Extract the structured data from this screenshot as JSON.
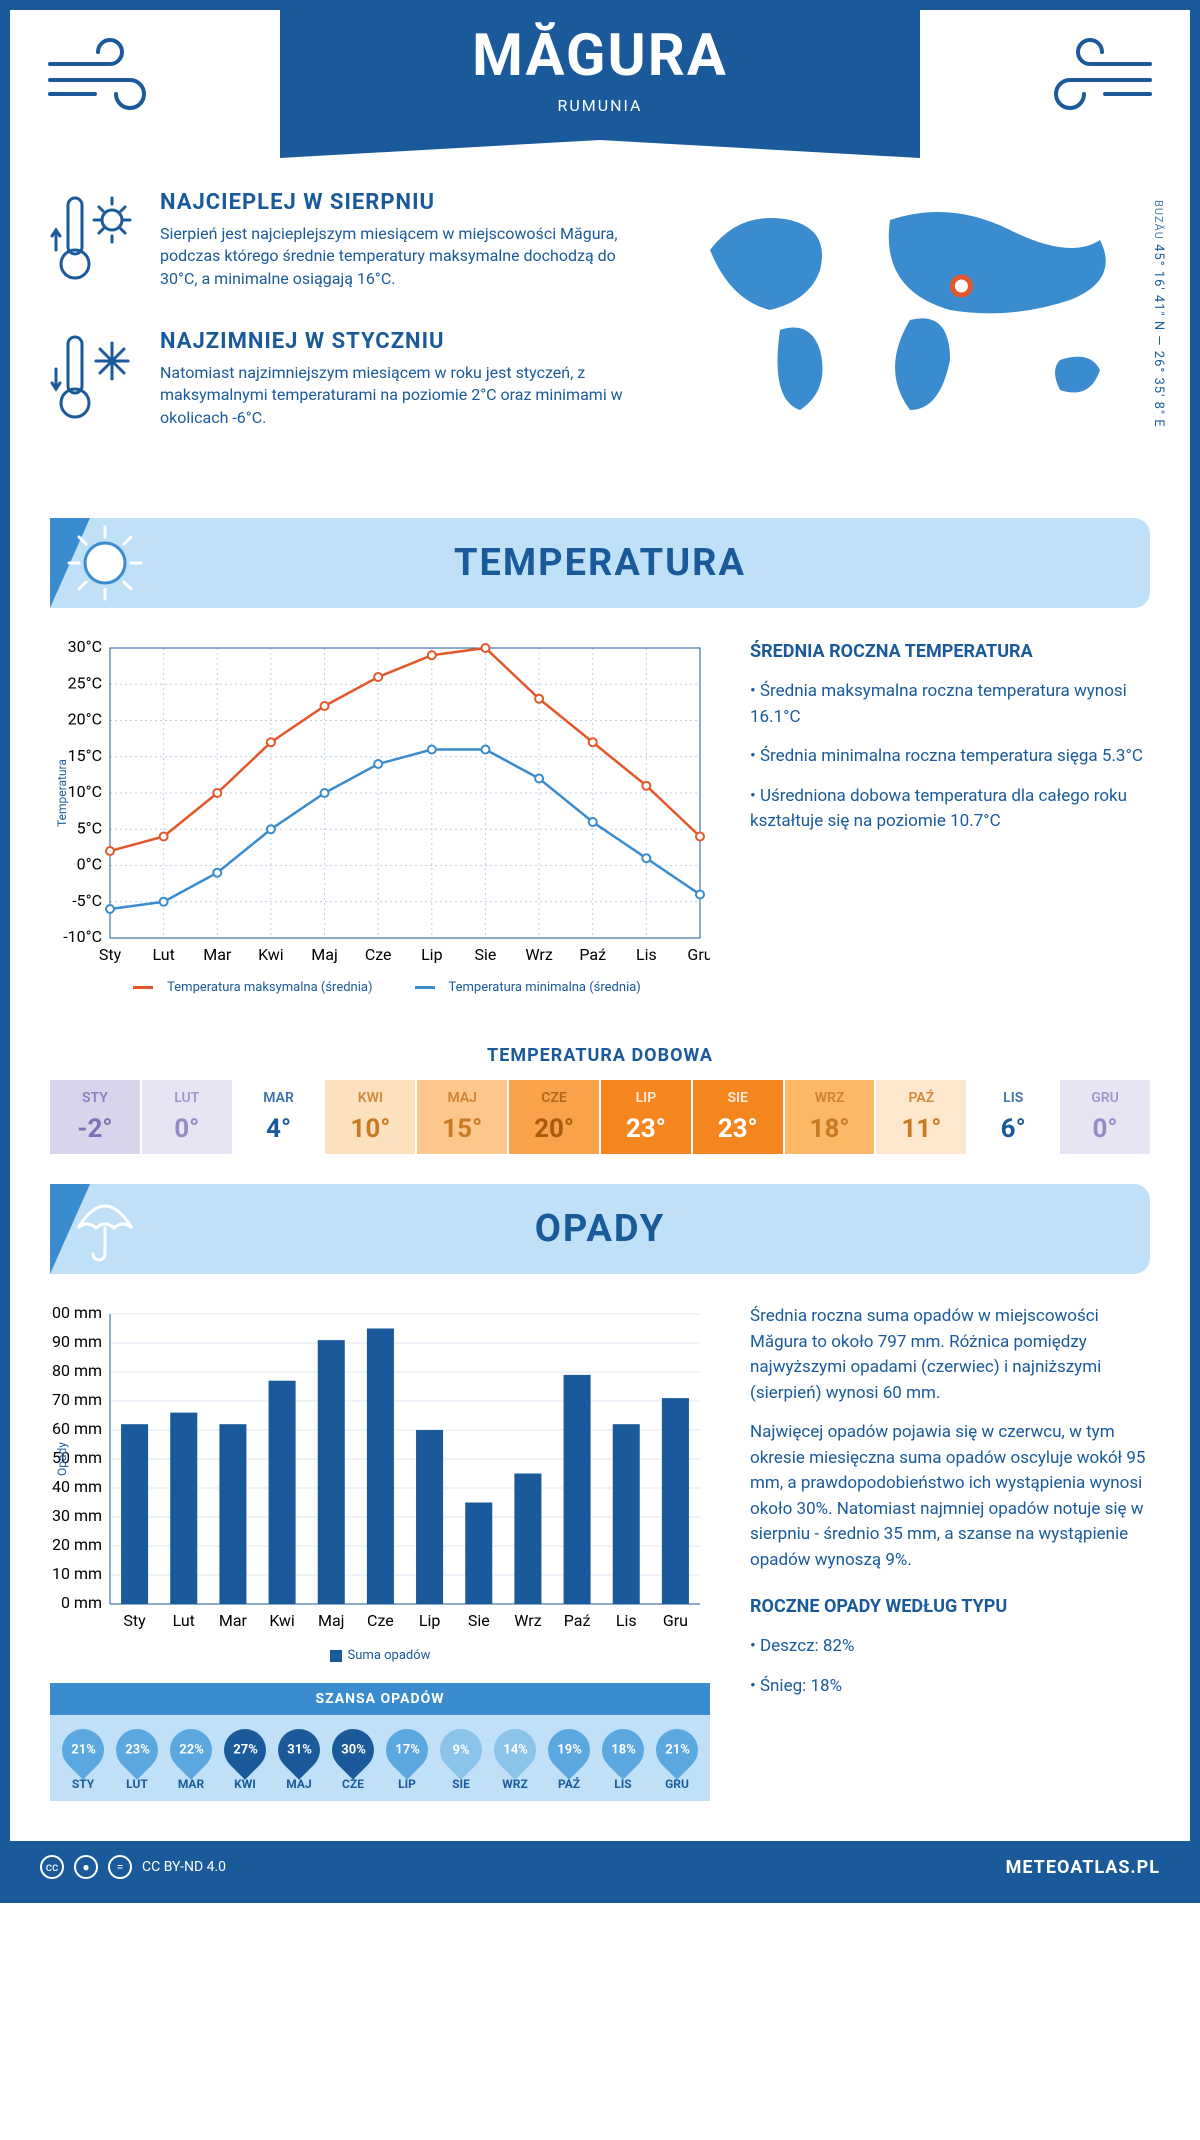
{
  "header": {
    "title": "MĂGURA",
    "subtitle": "RUMUNIA"
  },
  "intro": {
    "hot": {
      "heading": "NAJCIEPLEJ W SIERPNIU",
      "body": "Sierpień jest najcieplejszym miesiącem w miejscowości Măgura, podczas którego średnie temperatury maksymalne dochodzą do 30°C, a minimalne osiągają 16°C."
    },
    "cold": {
      "heading": "NAJZIMNIEJ W STYCZNIU",
      "body": "Natomiast najzimniejszym miesiącem w roku jest styczeń, z maksymalnymi temperaturami na poziomie 2°C oraz minimami w okolicach -6°C."
    },
    "coords": "45° 16' 41\" N — 26° 35' 8\" E",
    "region": "BUZĂU",
    "marker": {
      "lon_pct": 59,
      "lat_pct": 40
    }
  },
  "sections": {
    "temperature_title": "TEMPERATURA",
    "precip_title": "OPADY"
  },
  "months": [
    "Sty",
    "Lut",
    "Mar",
    "Kwi",
    "Maj",
    "Cze",
    "Lip",
    "Sie",
    "Wrz",
    "Paź",
    "Lis",
    "Gru"
  ],
  "months_upper": [
    "STY",
    "LUT",
    "MAR",
    "KWI",
    "MAJ",
    "CZE",
    "LIP",
    "SIE",
    "WRZ",
    "PAŹ",
    "LIS",
    "GRU"
  ],
  "temperature_chart": {
    "type": "line",
    "ylabel": "Temperatura",
    "ylim": [
      -10,
      30
    ],
    "ytick_step": 5,
    "y_unit": "°C",
    "grid_color": "#bcd1e6",
    "series": [
      {
        "name": "Temperatura maksymalna (średnia)",
        "color": "#e2582b",
        "values": [
          2,
          4,
          10,
          17,
          22,
          26,
          29,
          30,
          23,
          17,
          11,
          4
        ]
      },
      {
        "name": "Temperatura minimalna (średnia)",
        "color": "#3a8ccf",
        "values": [
          -6,
          -5,
          -1,
          5,
          10,
          14,
          16,
          16,
          12,
          6,
          1,
          -4
        ]
      }
    ]
  },
  "temperature_side": {
    "heading": "ŚREDNIA ROCZNA TEMPERATURA",
    "bullets": [
      "Średnia maksymalna roczna temperatura wynosi 16.1°C",
      "Średnia minimalna roczna temperatura sięga 5.3°C",
      "Uśredniona dobowa temperatura dla całego roku kształtuje się na poziomie 10.7°C"
    ]
  },
  "daily_temp": {
    "title": "TEMPERATURA DOBOWA",
    "values_label": [
      "-2°",
      "0°",
      "4°",
      "10°",
      "15°",
      "20°",
      "23°",
      "23°",
      "18°",
      "11°",
      "6°",
      "0°"
    ],
    "cell_bg": [
      "#d9d4ec",
      "#e8e4f3",
      "#fff",
      "#fde1bf",
      "#fcc78b",
      "#f9a24a",
      "#f5861f",
      "#f5861f",
      "#fcb867",
      "#fde7cd",
      "#fff",
      "#e8e4f3"
    ],
    "cell_fg": [
      "#7d72b9",
      "#938bc6",
      "#1b5a9a",
      "#c77a22",
      "#c77a22",
      "#a85c0f",
      "#fff",
      "#fff",
      "#c77a22",
      "#c77a22",
      "#1b5a9a",
      "#938bc6"
    ]
  },
  "precip_chart": {
    "type": "bar",
    "ylabel": "Opady",
    "ylim": [
      0,
      100
    ],
    "ytick_step": 10,
    "y_unit": " mm",
    "bar_color": "#1b5a9a",
    "grid_color": "#dfeaf4",
    "legend_label": "Suma opadów",
    "values": [
      62,
      66,
      62,
      77,
      91,
      95,
      60,
      35,
      45,
      79,
      62,
      71
    ]
  },
  "precip_side": {
    "paragraphs": [
      "Średnia roczna suma opadów w miejscowości Măgura to około 797 mm. Różnica pomiędzy najwyższymi opadami (czerwiec) i najniższymi (sierpień) wynosi 60 mm.",
      "Najwięcej opadów pojawia się w czerwcu, w tym okresie miesięczna suma opadów oscyluje wokół 95 mm, a prawdopodobieństwo ich wystąpienia wynosi około 30%. Natomiast najmniej opadów notuje się w sierpniu - średnio 35 mm, a szanse na wystąpienie opadów wynoszą 9%."
    ],
    "type_heading": "ROCZNE OPADY WEDŁUG TYPU",
    "types": [
      {
        "label": "Deszcz",
        "value": "82%"
      },
      {
        "label": "Śnieg",
        "value": "18%"
      }
    ]
  },
  "precip_chance": {
    "title": "SZANSA OPADÓW",
    "values_pct": [
      21,
      23,
      22,
      27,
      31,
      30,
      17,
      9,
      14,
      19,
      18,
      21
    ],
    "drop_bg": [
      "#5aa8df",
      "#5aa8df",
      "#5aa8df",
      "#1b5a9a",
      "#1b5a9a",
      "#1b5a9a",
      "#5aa8df",
      "#8bc4e8",
      "#8bc4e8",
      "#5aa8df",
      "#5aa8df",
      "#5aa8df"
    ]
  },
  "footer": {
    "license": "CC BY-ND 4.0",
    "brand": "METEOATLAS.PL"
  },
  "colors": {
    "primary": "#1b5a9a",
    "light": "#bfe0f7",
    "mid": "#3a8ccf"
  }
}
